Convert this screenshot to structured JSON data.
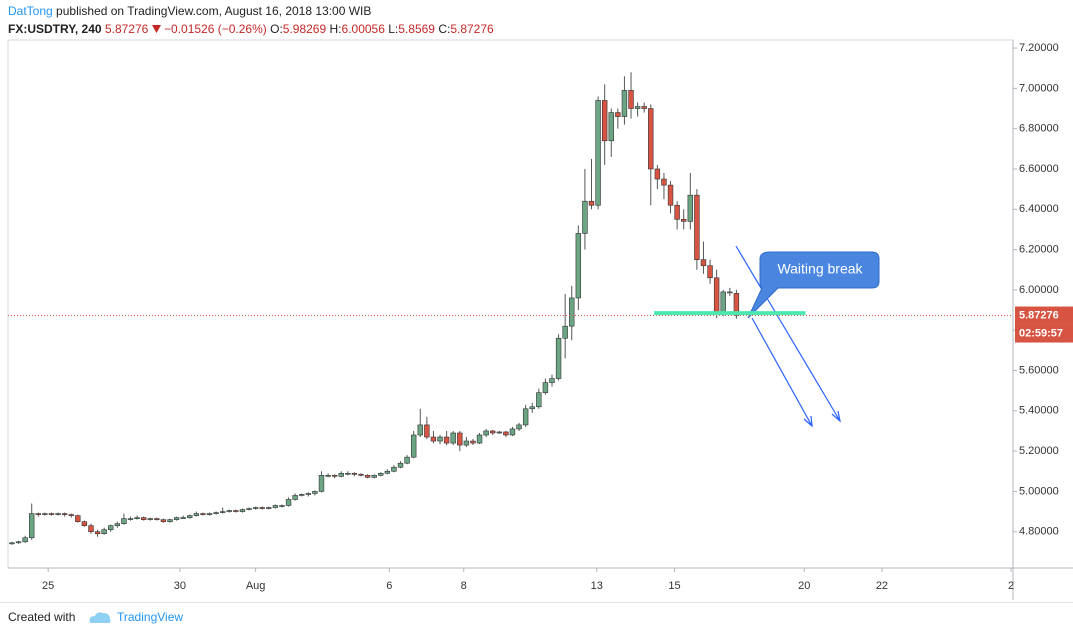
{
  "header": {
    "author": "DatTong",
    "published": "published on TradingView.com, August 16, 2018 13:00 WIB",
    "symbol": "FX:USDTRY, 240",
    "change": "−0.01526 (−0.26%)",
    "open_label": "O:",
    "high_label": "H:",
    "low_label": "L:",
    "close_label": "C:"
  },
  "footer": {
    "created": "Created with",
    "brand": "TradingView"
  },
  "chart_data": {
    "type": "candlestick",
    "up_color": "#6ba583",
    "down_color": "#d75442",
    "xlim": [
      -0.6,
      152
    ],
    "ylim": [
      4.62,
      7.24
    ],
    "xticks": [
      {
        "value": 5.5,
        "label": "25"
      },
      {
        "value": 25.5,
        "label": "30"
      },
      {
        "value": 37,
        "label": "Aug"
      },
      {
        "value": 57.3,
        "label": "6"
      },
      {
        "value": 68.6,
        "label": "8"
      },
      {
        "value": 88.8,
        "label": "13"
      },
      {
        "value": 100.6,
        "label": "15"
      },
      {
        "value": 120.3,
        "label": "20"
      },
      {
        "value": 132.1,
        "label": "22"
      },
      {
        "value": 151.7,
        "label": "2"
      }
    ],
    "yticks": [
      {
        "value": 4.8,
        "label": "4.80000"
      },
      {
        "value": 5.0,
        "label": "5.00000"
      },
      {
        "value": 5.2,
        "label": "5.20000"
      },
      {
        "value": 5.4,
        "label": "5.40000"
      },
      {
        "value": 5.6,
        "label": "5.60000"
      },
      {
        "value": 5.8,
        "label": "5.80000"
      },
      {
        "value": 6.0,
        "label": "6.00000"
      },
      {
        "value": 6.2,
        "label": "6.20000"
      },
      {
        "value": 6.4,
        "label": "6.40000"
      },
      {
        "value": 6.6,
        "label": "6.60000"
      },
      {
        "value": 6.8,
        "label": "6.80000"
      },
      {
        "value": 7.0,
        "label": "7.00000"
      },
      {
        "value": 7.2,
        "label": "7.20000"
      }
    ],
    "countdown": "02:59:57",
    "annotation": "Waiting break",
    "support_level": 5.885,
    "candles": [
      [
        4.74,
        4.75,
        4.735,
        4.745
      ],
      [
        4.745,
        4.755,
        4.74,
        4.75
      ],
      [
        4.75,
        4.78,
        4.745,
        4.77
      ],
      [
        4.77,
        4.94,
        4.76,
        4.89
      ],
      [
        4.89,
        4.895,
        4.875,
        4.885
      ],
      [
        4.885,
        4.895,
        4.88,
        4.89
      ],
      [
        4.89,
        4.895,
        4.88,
        4.885
      ],
      [
        4.885,
        4.895,
        4.88,
        4.89
      ],
      [
        4.89,
        4.895,
        4.875,
        4.885
      ],
      [
        4.885,
        4.89,
        4.87,
        4.88
      ],
      [
        4.88,
        4.885,
        4.845,
        4.85
      ],
      [
        4.85,
        4.855,
        4.825,
        4.83
      ],
      [
        4.83,
        4.84,
        4.79,
        4.8
      ],
      [
        4.8,
        4.81,
        4.775,
        4.79
      ],
      [
        4.79,
        4.82,
        4.785,
        4.81
      ],
      [
        4.81,
        4.835,
        4.8,
        4.83
      ],
      [
        4.83,
        4.85,
        4.82,
        4.84
      ],
      [
        4.84,
        4.89,
        4.835,
        4.865
      ],
      [
        4.865,
        4.875,
        4.855,
        4.865
      ],
      [
        4.865,
        4.88,
        4.86,
        4.87
      ],
      [
        4.87,
        4.875,
        4.855,
        4.86
      ],
      [
        4.86,
        4.87,
        4.855,
        4.865
      ],
      [
        4.865,
        4.87,
        4.855,
        4.86
      ],
      [
        4.86,
        4.865,
        4.845,
        4.85
      ],
      [
        4.85,
        4.865,
        4.845,
        4.86
      ],
      [
        4.86,
        4.875,
        4.855,
        4.87
      ],
      [
        4.87,
        4.88,
        4.865,
        4.87
      ],
      [
        4.87,
        4.885,
        4.865,
        4.88
      ],
      [
        4.88,
        4.9,
        4.875,
        4.89
      ],
      [
        4.89,
        4.895,
        4.88,
        4.885
      ],
      [
        4.885,
        4.895,
        4.88,
        4.89
      ],
      [
        4.89,
        4.9,
        4.885,
        4.895
      ],
      [
        4.895,
        4.92,
        4.89,
        4.9
      ],
      [
        4.9,
        4.91,
        4.895,
        4.905
      ],
      [
        4.905,
        4.91,
        4.895,
        4.9
      ],
      [
        4.9,
        4.915,
        4.895,
        4.91
      ],
      [
        4.91,
        4.92,
        4.905,
        4.915
      ],
      [
        4.915,
        4.925,
        4.91,
        4.92
      ],
      [
        4.92,
        4.925,
        4.91,
        4.915
      ],
      [
        4.915,
        4.925,
        4.91,
        4.92
      ],
      [
        4.92,
        4.935,
        4.915,
        4.93
      ],
      [
        4.93,
        4.935,
        4.92,
        4.93
      ],
      [
        4.93,
        4.97,
        4.925,
        4.96
      ],
      [
        4.96,
        4.99,
        4.955,
        4.98
      ],
      [
        4.98,
        4.99,
        4.975,
        4.985
      ],
      [
        4.985,
        4.995,
        4.975,
        4.99
      ],
      [
        4.99,
        5.005,
        4.98,
        5.0
      ],
      [
        5.0,
        5.1,
        4.995,
        5.08
      ],
      [
        5.08,
        5.09,
        5.07,
        5.08
      ],
      [
        5.08,
        5.085,
        5.065,
        5.075
      ],
      [
        5.075,
        5.1,
        5.07,
        5.09
      ],
      [
        5.09,
        5.1,
        5.08,
        5.09
      ],
      [
        5.09,
        5.095,
        5.075,
        5.085
      ],
      [
        5.085,
        5.09,
        5.075,
        5.08
      ],
      [
        5.08,
        5.085,
        5.065,
        5.07
      ],
      [
        5.07,
        5.085,
        5.065,
        5.08
      ],
      [
        5.08,
        5.095,
        5.075,
        5.09
      ],
      [
        5.09,
        5.11,
        5.085,
        5.1
      ],
      [
        5.1,
        5.13,
        5.095,
        5.12
      ],
      [
        5.12,
        5.15,
        5.115,
        5.14
      ],
      [
        5.14,
        5.18,
        5.135,
        5.17
      ],
      [
        5.17,
        5.3,
        5.165,
        5.28
      ],
      [
        5.28,
        5.41,
        5.27,
        5.33
      ],
      [
        5.33,
        5.37,
        5.26,
        5.27
      ],
      [
        5.27,
        5.3,
        5.24,
        5.25
      ],
      [
        5.25,
        5.28,
        5.235,
        5.27
      ],
      [
        5.27,
        5.3,
        5.23,
        5.24
      ],
      [
        5.24,
        5.3,
        5.23,
        5.29
      ],
      [
        5.29,
        5.3,
        5.2,
        5.23
      ],
      [
        5.23,
        5.27,
        5.22,
        5.25
      ],
      [
        5.25,
        5.26,
        5.23,
        5.24
      ],
      [
        5.24,
        5.29,
        5.235,
        5.28
      ],
      [
        5.28,
        5.31,
        5.27,
        5.3
      ],
      [
        5.3,
        5.305,
        5.28,
        5.29
      ],
      [
        5.29,
        5.3,
        5.285,
        5.295
      ],
      [
        5.295,
        5.3,
        5.27,
        5.28
      ],
      [
        5.28,
        5.32,
        5.275,
        5.31
      ],
      [
        5.31,
        5.34,
        5.3,
        5.33
      ],
      [
        5.33,
        5.43,
        5.32,
        5.41
      ],
      [
        5.41,
        5.44,
        5.39,
        5.42
      ],
      [
        5.42,
        5.51,
        5.41,
        5.49
      ],
      [
        5.49,
        5.56,
        5.48,
        5.54
      ],
      [
        5.54,
        5.58,
        5.52,
        5.56
      ],
      [
        5.56,
        5.78,
        5.55,
        5.76
      ],
      [
        5.76,
        5.98,
        5.66,
        5.82
      ],
      [
        5.82,
        6.02,
        5.75,
        5.96
      ],
      [
        5.96,
        6.32,
        5.9,
        6.28
      ],
      [
        6.28,
        6.6,
        6.2,
        6.44
      ],
      [
        6.44,
        6.65,
        6.4,
        6.42
      ],
      [
        6.42,
        6.96,
        6.4,
        6.94
      ],
      [
        6.94,
        7.02,
        6.62,
        6.74
      ],
      [
        6.74,
        6.9,
        6.66,
        6.88
      ],
      [
        6.88,
        6.9,
        6.8,
        6.86
      ],
      [
        6.86,
        7.06,
        6.82,
        6.99
      ],
      [
        6.99,
        7.08,
        6.85,
        6.9
      ],
      [
        6.9,
        6.93,
        6.86,
        6.91
      ],
      [
        6.91,
        6.93,
        6.88,
        6.9
      ],
      [
        6.9,
        6.92,
        6.42,
        6.6
      ],
      [
        6.6,
        6.62,
        6.5,
        6.55
      ],
      [
        6.55,
        6.58,
        6.45,
        6.52
      ],
      [
        6.52,
        6.54,
        6.38,
        6.42
      ],
      [
        6.42,
        6.44,
        6.3,
        6.35
      ],
      [
        6.35,
        6.4,
        6.3,
        6.34
      ],
      [
        6.34,
        6.58,
        6.3,
        6.47
      ],
      [
        6.47,
        6.5,
        6.1,
        6.15
      ],
      [
        6.15,
        6.24,
        6.08,
        6.12
      ],
      [
        6.12,
        6.15,
        6.03,
        6.06
      ],
      [
        6.06,
        6.1,
        5.86,
        5.88
      ],
      [
        5.88,
        6.0,
        5.87,
        5.99
      ],
      [
        5.99,
        6.01,
        5.97,
        5.99
      ],
      [
        5.98269,
        6.00056,
        5.8569,
        5.87276
      ]
    ]
  }
}
